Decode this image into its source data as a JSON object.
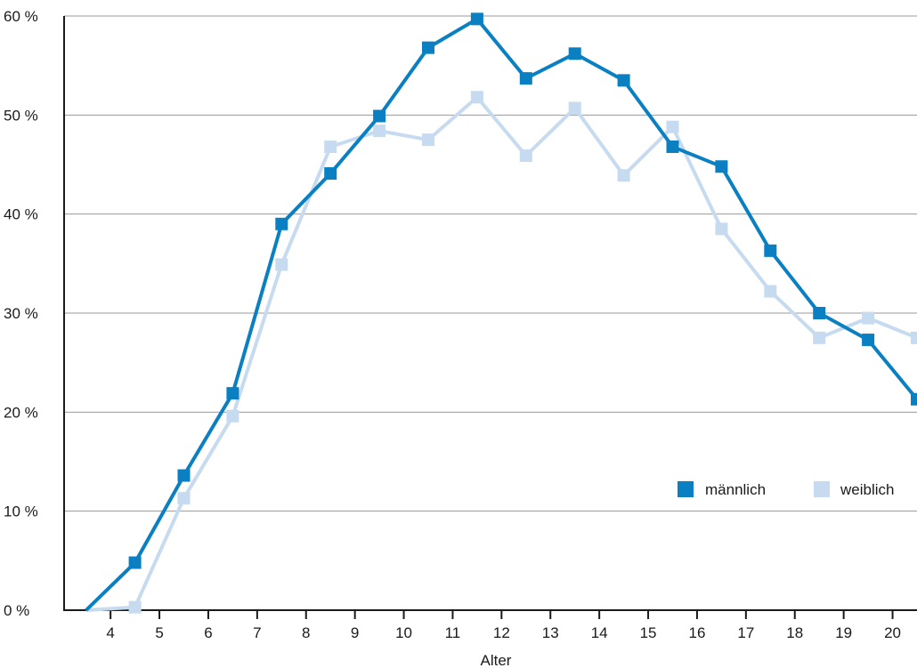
{
  "chart_data": {
    "type": "line",
    "title": "",
    "xlabel": "Alter",
    "ylabel": "",
    "x_ticks": [
      "4",
      "5",
      "6",
      "7",
      "8",
      "9",
      "10",
      "11",
      "12",
      "13",
      "14",
      "15",
      "16",
      "17",
      "18",
      "19",
      "20"
    ],
    "y_ticks": [
      "0 %",
      "10 %",
      "20 %",
      "30 %",
      "40 %",
      "50 %",
      "60 %"
    ],
    "ylim": [
      0,
      60
    ],
    "x": [
      3.5,
      4.5,
      5.5,
      6.5,
      7.5,
      8.5,
      9.5,
      10.5,
      11.5,
      12.5,
      13.5,
      14.5,
      15.5,
      16.5,
      17.5,
      18.5,
      19.5,
      20.5
    ],
    "xlim": [
      3.05,
      20.5
    ],
    "grid": "horizontal",
    "legend_position": "lower-right",
    "series": [
      {
        "name": "männlich",
        "color": "#0a80c2",
        "values": [
          0,
          4.8,
          13.6,
          21.9,
          39.0,
          44.1,
          49.9,
          56.8,
          59.7,
          53.7,
          56.2,
          53.5,
          46.8,
          44.8,
          36.3,
          30.0,
          27.3,
          21.3
        ]
      },
      {
        "name": "weiblich",
        "color": "#c6daf0",
        "values": [
          0,
          0.3,
          11.3,
          19.6,
          34.9,
          46.8,
          48.4,
          47.5,
          51.8,
          45.9,
          50.7,
          43.9,
          48.8,
          38.5,
          32.2,
          27.5,
          29.5,
          27.5
        ]
      }
    ]
  }
}
